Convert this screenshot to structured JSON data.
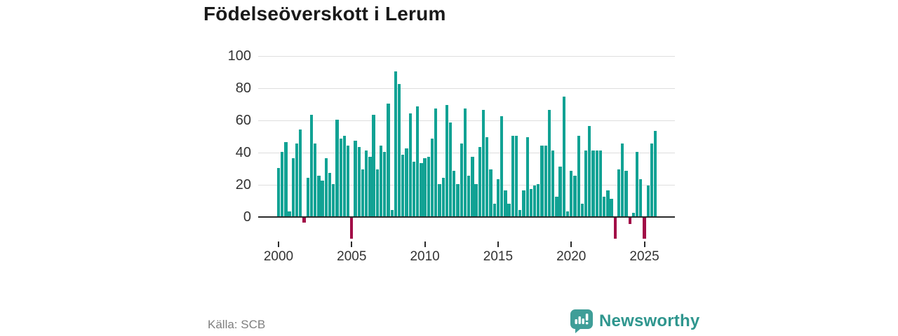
{
  "title": "Födelseöverskott i Lerum",
  "source": "Källa: SCB",
  "branding": {
    "name": "Newsworthy",
    "color": "#2f968e",
    "icon": "speech-bubble-bar-chart-icon"
  },
  "chart_data": {
    "type": "bar",
    "title": "Födelseöverskott i Lerum",
    "xlabel": "",
    "ylabel": "",
    "frequency": "quarterly",
    "start_year": 2000,
    "x_tick_labels": [
      "2000",
      "2005",
      "2010",
      "2015",
      "2020",
      "2025"
    ],
    "y_ticks": [
      0,
      20,
      40,
      60,
      80,
      100
    ],
    "ylim": [
      -16,
      100
    ],
    "grid": true,
    "legend": "none",
    "positive_color": "#11a294",
    "negative_color": "#a20d47",
    "series": [
      {
        "name": "Födelseöverskott",
        "years": [
          {
            "year": 2000,
            "values": [
              30,
              40,
              46,
              3
            ]
          },
          {
            "year": 2001,
            "values": [
              36,
              45,
              54,
              -3
            ]
          },
          {
            "year": 2002,
            "values": [
              24,
              63,
              45,
              25
            ]
          },
          {
            "year": 2003,
            "values": [
              22,
              36,
              27,
              20
            ]
          },
          {
            "year": 2004,
            "values": [
              60,
              48,
              50,
              44
            ]
          },
          {
            "year": 2005,
            "values": [
              -13,
              47,
              43,
              29
            ]
          },
          {
            "year": 2006,
            "values": [
              41,
              37,
              63,
              29
            ]
          },
          {
            "year": 2007,
            "values": [
              44,
              40,
              70,
              4
            ]
          },
          {
            "year": 2008,
            "values": [
              90,
              82,
              38,
              42
            ]
          },
          {
            "year": 2009,
            "values": [
              64,
              34,
              68,
              33
            ]
          },
          {
            "year": 2010,
            "values": [
              36,
              37,
              48,
              67
            ]
          },
          {
            "year": 2011,
            "values": [
              20,
              24,
              69,
              58
            ]
          },
          {
            "year": 2012,
            "values": [
              28,
              20,
              45,
              67
            ]
          },
          {
            "year": 2013,
            "values": [
              25,
              37,
              20,
              43
            ]
          },
          {
            "year": 2014,
            "values": [
              66,
              49,
              29,
              8
            ]
          },
          {
            "year": 2015,
            "values": [
              23,
              62,
              16,
              8
            ]
          },
          {
            "year": 2016,
            "values": [
              50,
              50,
              4,
              16
            ]
          },
          {
            "year": 2017,
            "values": [
              49,
              17,
              19,
              20
            ]
          },
          {
            "year": 2018,
            "values": [
              44,
              44,
              66,
              41
            ]
          },
          {
            "year": 2019,
            "values": [
              12,
              31,
              74,
              3
            ]
          },
          {
            "year": 2020,
            "values": [
              28,
              25,
              50,
              8
            ]
          },
          {
            "year": 2021,
            "values": [
              41,
              56,
              41,
              41
            ]
          },
          {
            "year": 2022,
            "values": [
              41,
              12,
              16,
              11
            ]
          },
          {
            "year": 2023,
            "values": [
              -13,
              29,
              45,
              28
            ]
          },
          {
            "year": 2024,
            "values": [
              -4,
              2,
              40,
              23
            ]
          },
          {
            "year": 2025,
            "values": [
              -13,
              19,
              45,
              53
            ]
          }
        ]
      }
    ]
  }
}
